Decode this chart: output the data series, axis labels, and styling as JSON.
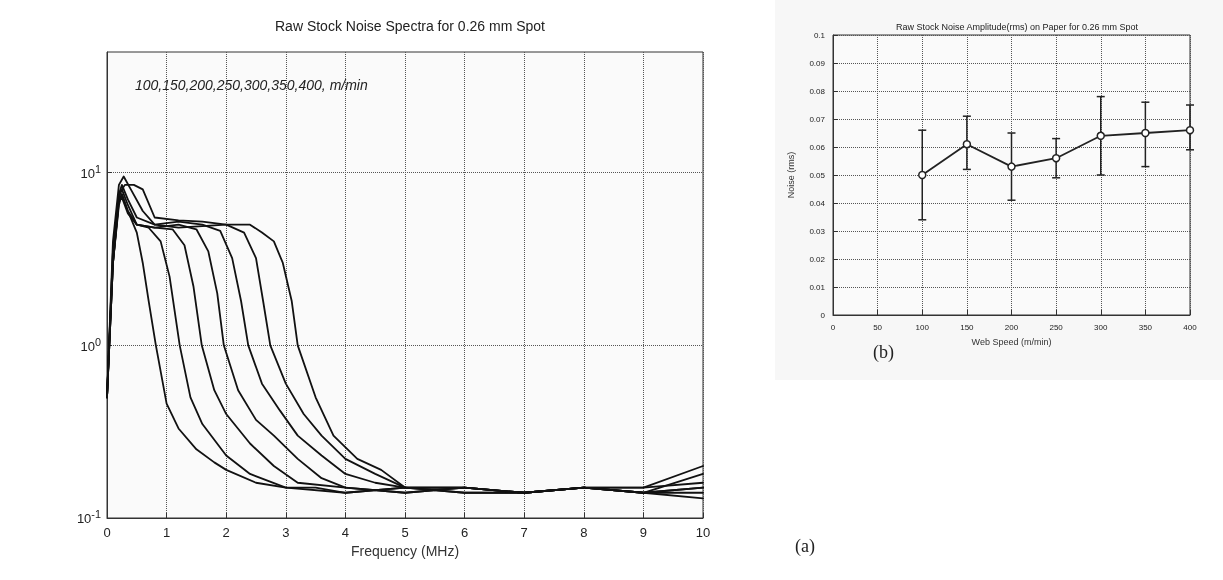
{
  "chart_data": [
    {
      "type": "line",
      "title": "Raw Stock Noise Spectra for 0.26 mm Spot",
      "xlabel": "Frequency (MHz)",
      "log": "y",
      "grid": true,
      "marker": "none",
      "line_style": "solid",
      "xlim": [
        0,
        10
      ],
      "xticks": [
        0,
        1,
        2,
        3,
        4,
        5,
        6,
        7,
        8,
        9,
        10
      ],
      "ylim": [
        0.1,
        50
      ],
      "yticks": [
        {
          "value": 0.1,
          "label": "10$^{-1}$"
        },
        {
          "value": 1,
          "label": "10$^{0}$"
        },
        {
          "value": 10,
          "label": "10$^{1}$"
        }
      ],
      "annotations": [
        "100,150,200,250,300,350,400, m/min",
        "(a)"
      ],
      "series": [
        {
          "color": "#111111",
          "x": [
            0,
            0.1,
            0.2,
            0.25,
            0.35,
            0.5,
            0.6,
            0.7,
            0.82,
            1.0,
            1.2,
            1.5,
            1.8,
            2.0,
            2.5,
            3,
            4,
            5,
            6,
            7,
            8,
            9,
            10
          ],
          "values": [
            0.5,
            3,
            6.5,
            7.5,
            6,
            4.5,
            3,
            1.8,
            1.0,
            0.46,
            0.33,
            0.25,
            0.21,
            0.19,
            0.16,
            0.15,
            0.14,
            0.15,
            0.14,
            0.14,
            0.15,
            0.14,
            0.18
          ]
        },
        {
          "color": "#111111",
          "x": [
            0,
            0.1,
            0.2,
            0.25,
            0.35,
            0.5,
            0.7,
            0.9,
            1.05,
            1.22,
            1.4,
            1.6,
            2.0,
            2.4,
            3,
            3.5,
            4,
            5,
            6,
            7,
            8,
            9,
            10
          ],
          "values": [
            0.5,
            3,
            6.8,
            7.2,
            5.8,
            5,
            4.8,
            4,
            2.5,
            1.0,
            0.5,
            0.35,
            0.23,
            0.18,
            0.15,
            0.15,
            0.14,
            0.15,
            0.14,
            0.14,
            0.15,
            0.15,
            0.16
          ]
        },
        {
          "color": "#111111",
          "x": [
            0,
            0.1,
            0.2,
            0.25,
            0.35,
            0.5,
            0.8,
            1.1,
            1.3,
            1.45,
            1.59,
            1.8,
            2.0,
            2.4,
            2.8,
            3.2,
            4,
            5,
            6,
            7,
            8,
            9,
            10
          ],
          "values": [
            0.5,
            3,
            7,
            7.5,
            6,
            5,
            4.8,
            4.7,
            3.8,
            2.2,
            1.0,
            0.55,
            0.4,
            0.27,
            0.2,
            0.16,
            0.15,
            0.14,
            0.15,
            0.14,
            0.15,
            0.14,
            0.15
          ]
        },
        {
          "color": "#111111",
          "x": [
            0,
            0.1,
            0.2,
            0.25,
            0.35,
            0.5,
            0.8,
            1.2,
            1.5,
            1.7,
            1.85,
            1.96,
            2.2,
            2.5,
            2.8,
            3.2,
            3.6,
            4,
            5,
            6,
            7,
            8,
            9,
            10
          ],
          "values": [
            0.5,
            3,
            7.2,
            8,
            6.5,
            5,
            4.8,
            5,
            4.7,
            3.5,
            2,
            1.0,
            0.55,
            0.37,
            0.3,
            0.22,
            0.17,
            0.15,
            0.14,
            0.15,
            0.14,
            0.15,
            0.14,
            0.13
          ]
        },
        {
          "color": "#111111",
          "x": [
            0,
            0.1,
            0.2,
            0.25,
            0.35,
            0.5,
            0.8,
            1.2,
            1.6,
            1.9,
            2.1,
            2.25,
            2.37,
            2.6,
            2.9,
            3.2,
            3.6,
            4,
            4.5,
            5,
            6,
            7,
            8,
            9,
            10
          ],
          "values": [
            0.5,
            3.5,
            7.5,
            8.5,
            7,
            5.5,
            5,
            5.2,
            5,
            4.6,
            3.2,
            1.8,
            1.0,
            0.6,
            0.42,
            0.3,
            0.23,
            0.18,
            0.16,
            0.15,
            0.15,
            0.14,
            0.15,
            0.14,
            0.14
          ]
        },
        {
          "color": "#111111",
          "x": [
            0,
            0.1,
            0.2,
            0.3,
            0.45,
            0.6,
            0.8,
            1.2,
            1.6,
            2.0,
            2.3,
            2.5,
            2.62,
            2.74,
            3.0,
            3.3,
            3.6,
            4,
            4.5,
            5,
            6,
            7,
            8,
            9,
            10
          ],
          "values": [
            0.5,
            3.5,
            7.5,
            8.5,
            8.5,
            8,
            5.5,
            5.3,
            5.2,
            5,
            4.5,
            3.2,
            1.8,
            1.0,
            0.6,
            0.4,
            0.3,
            0.22,
            0.18,
            0.15,
            0.15,
            0.14,
            0.15,
            0.14,
            0.15
          ]
        },
        {
          "color": "#111111",
          "x": [
            0,
            0.1,
            0.2,
            0.28,
            0.4,
            0.6,
            0.8,
            1.2,
            1.6,
            2.0,
            2.4,
            2.6,
            2.8,
            2.95,
            3.1,
            3.2,
            3.5,
            3.8,
            4.2,
            4.6,
            5,
            6,
            7,
            8,
            9,
            10
          ],
          "values": [
            0.5,
            4,
            8.5,
            9.5,
            8,
            6,
            5,
            4.8,
            4.9,
            5,
            5,
            4.5,
            4,
            3,
            1.8,
            1.0,
            0.5,
            0.3,
            0.22,
            0.19,
            0.15,
            0.15,
            0.14,
            0.15,
            0.15,
            0.2
          ]
        }
      ]
    },
    {
      "type": "line",
      "title": "Raw Stock Noise Amplitude(rms) on Paper for 0.26 mm Spot",
      "xlabel": "Web Speed (m/min)",
      "ylabel": "Noise (rms)",
      "grid": true,
      "marker": "circle",
      "line_style": "solid",
      "xlim": [
        0,
        400
      ],
      "xticks": [
        0,
        50,
        100,
        150,
        200,
        250,
        300,
        350,
        400
      ],
      "ylim": [
        0,
        0.1
      ],
      "yticks": [
        0,
        0.01,
        0.02,
        0.03,
        0.04,
        0.05,
        0.06,
        0.07,
        0.08,
        0.09,
        0.1
      ],
      "annotations": [
        "(b)"
      ],
      "series": [
        {
          "color": "#222222",
          "x": [
            100,
            150,
            200,
            250,
            300,
            350,
            400
          ],
          "values": [
            0.05,
            0.061,
            0.053,
            0.056,
            0.064,
            0.065,
            0.066
          ],
          "errors": [
            [
              0.034,
              0.066
            ],
            [
              0.052,
              0.071
            ],
            [
              0.041,
              0.065
            ],
            [
              0.049,
              0.063
            ],
            [
              0.05,
              0.078
            ],
            [
              0.053,
              0.076
            ],
            [
              0.059,
              0.075
            ]
          ]
        }
      ]
    }
  ]
}
